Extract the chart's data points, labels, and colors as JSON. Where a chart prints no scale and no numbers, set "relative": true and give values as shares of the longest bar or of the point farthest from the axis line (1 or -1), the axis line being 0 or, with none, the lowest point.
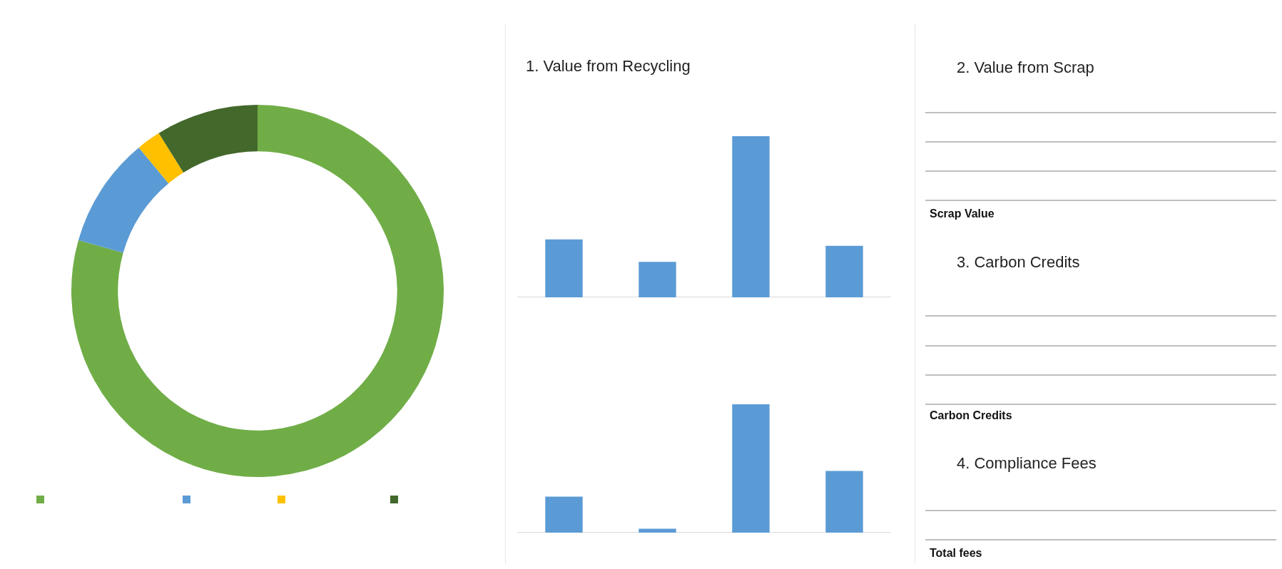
{
  "chart_data": [
    {
      "type": "donut",
      "categories": [
        null,
        null,
        null,
        null
      ],
      "values": [
        79.4,
        9.6,
        2.1,
        8.9
      ],
      "colors": [
        "#70ad47",
        "#5b9bd5",
        "#ffc000",
        "#43682b"
      ]
    },
    {
      "type": "bar",
      "title": "1. Value from Recycling",
      "categories": [
        null,
        null,
        null,
        null
      ],
      "values": [
        0.36,
        0.22,
        1,
        0.32
      ],
      "color": "#5b9bd5",
      "relative": true
    },
    {
      "type": "bar",
      "categories": [
        null,
        null,
        null,
        null
      ],
      "values": [
        0.28,
        0.03,
        1,
        0.48
      ],
      "color": "#5b9bd5",
      "relative": true
    },
    {
      "type": "other",
      "annotations": [
        "2. Value from Scrap",
        "Scrap Value",
        "3. Carbon Credits",
        "Carbon Credits",
        "4. Compliance Fees",
        "Total fees"
      ]
    }
  ]
}
